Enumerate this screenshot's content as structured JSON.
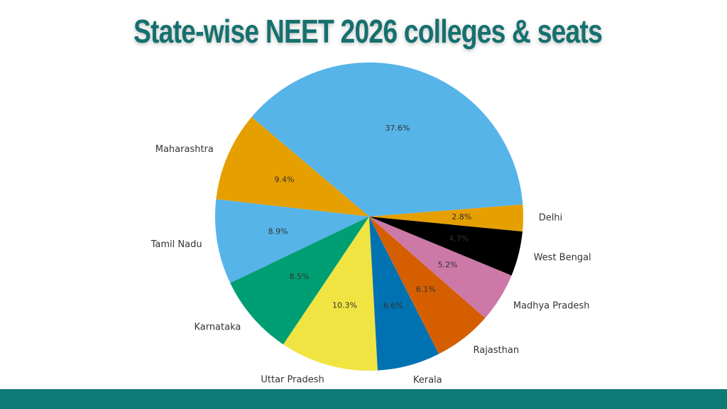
{
  "chart_data": {
    "type": "pie",
    "title": "State-wise NEET 2026 colleges & seats",
    "categories": [
      null,
      "Maharashtra",
      "Tamil Nadu",
      "Karnataka",
      "Uttar Pradesh",
      "Kerala",
      "Rajasthan",
      "Madhya Pradesh",
      "West Bengal",
      "Delhi"
    ],
    "values": [
      37.6,
      9.4,
      8.9,
      8.5,
      10.3,
      6.6,
      6.1,
      5.2,
      4.7,
      2.8
    ],
    "value_labels": [
      "37.6%",
      "9.4%",
      "8.9%",
      "8.5%",
      "10.3%",
      "6.6%",
      "6.1%",
      "5.2%",
      "4.7%",
      "2.8%"
    ],
    "colors": [
      "#56B4E9",
      "#E69F00",
      "#56B4E9",
      "#009E73",
      "#F0E442",
      "#0072B2",
      "#D55E00",
      "#CC79A7",
      "#000000",
      "#E69F00"
    ]
  }
}
